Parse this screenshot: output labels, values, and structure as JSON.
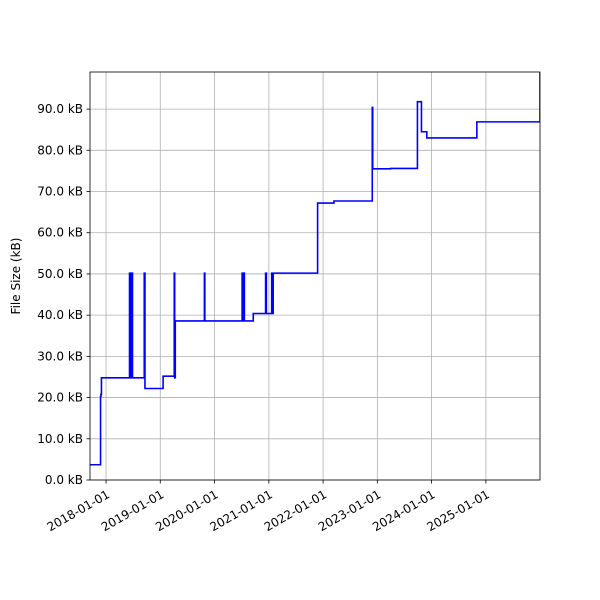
{
  "chart_data": {
    "type": "line",
    "title": "",
    "xlabel": "",
    "ylabel": "File Size (kB)",
    "x_scale": "date",
    "y_unit_suffix": " kB",
    "xlim": [
      "2017-09-15",
      "2025-12-31"
    ],
    "ylim": [
      0,
      99
    ],
    "grid": true,
    "line_color": "#0000ff",
    "x_ticks": [
      "2018-01-01",
      "2019-01-01",
      "2020-01-01",
      "2021-01-01",
      "2022-01-01",
      "2023-01-01",
      "2024-01-01",
      "2025-01-01"
    ],
    "x_tick_labels": [
      "2018-01-01",
      "2019-01-01",
      "2020-01-01",
      "2021-01-01",
      "2022-01-01",
      "2023-01-01",
      "2024-01-01",
      "2025-01-01"
    ],
    "y_ticks": [
      0,
      10,
      20,
      30,
      40,
      50,
      60,
      70,
      80,
      90
    ],
    "y_tick_labels": [
      "0.0 kB",
      "10.0 kB",
      "20.0 kB",
      "30.0 kB",
      "40.0 kB",
      "50.0 kB",
      "60.0 kB",
      "70.0 kB",
      "80.0 kB",
      "90.0 kB"
    ],
    "series": [
      {
        "x": [
          "2017-09-15",
          "2017-11-25",
          "2017-11-25",
          "2017-11-28",
          "2017-11-28",
          "2017-12-01",
          "2017-12-01",
          "2018-06-08",
          "2018-06-08",
          "2018-06-10",
          "2018-06-10",
          "2018-06-16",
          "2018-06-16",
          "2018-06-20",
          "2018-06-20",
          "2018-06-25",
          "2018-06-25",
          "2018-06-28",
          "2018-06-28",
          "2018-07-02",
          "2018-07-02",
          "2018-09-15",
          "2018-09-15",
          "2018-09-20",
          "2018-09-20",
          "2019-01-20",
          "2019-01-20",
          "2019-04-05",
          "2019-04-05",
          "2019-04-08",
          "2019-04-08",
          "2019-04-12",
          "2019-04-12",
          "2019-04-18",
          "2019-04-18",
          "2019-10-25",
          "2019-10-25",
          "2019-10-28",
          "2019-10-28",
          "2020-07-05",
          "2020-07-05",
          "2020-07-10",
          "2020-07-10",
          "2020-07-15",
          "2020-07-15",
          "2020-07-20",
          "2020-07-20",
          "2020-09-18",
          "2020-09-18",
          "2020-12-10",
          "2020-12-10",
          "2020-12-15",
          "2020-12-15",
          "2021-01-20",
          "2021-01-20",
          "2021-01-25",
          "2021-01-25",
          "2021-01-30",
          "2021-01-30",
          "2021-11-25",
          "2021-11-25",
          "2022-03-15",
          "2022-03-15",
          "2022-11-28",
          "2022-11-28",
          "2022-12-01",
          "2022-12-01",
          "2023-04-01",
          "2023-04-01",
          "2023-09-28",
          "2023-09-28",
          "2023-10-25",
          "2023-10-25",
          "2023-11-30",
          "2023-11-30",
          "2024-11-01",
          "2024-11-01",
          "2025-12-31",
          "2025-12-31"
        ],
        "y": [
          3.7,
          3.7,
          20.3,
          20.3,
          20.8,
          20.8,
          24.8,
          24.8,
          50.2,
          50.2,
          24.8,
          24.8,
          50.2,
          50.2,
          24.8,
          24.8,
          50.2,
          50.2,
          24.8,
          24.8,
          24.8,
          24.8,
          50.2,
          50.2,
          22.2,
          22.2,
          25.2,
          25.2,
          50.2,
          50.2,
          24.8,
          24.8,
          38.6,
          38.6,
          38.6,
          38.6,
          50.2,
          50.2,
          38.6,
          38.6,
          50.2,
          50.2,
          38.6,
          38.6,
          50.2,
          50.2,
          38.6,
          38.6,
          40.4,
          40.4,
          50.2,
          50.2,
          40.4,
          40.4,
          50.2,
          50.2,
          40.4,
          40.4,
          50.2,
          50.2,
          67.2,
          67.2,
          67.7,
          67.7,
          90.4,
          90.4,
          75.5,
          75.5,
          75.6,
          75.6,
          91.8,
          91.8,
          84.5,
          84.5,
          83.0,
          83.0,
          86.9,
          86.9,
          99.0
        ]
      }
    ]
  }
}
